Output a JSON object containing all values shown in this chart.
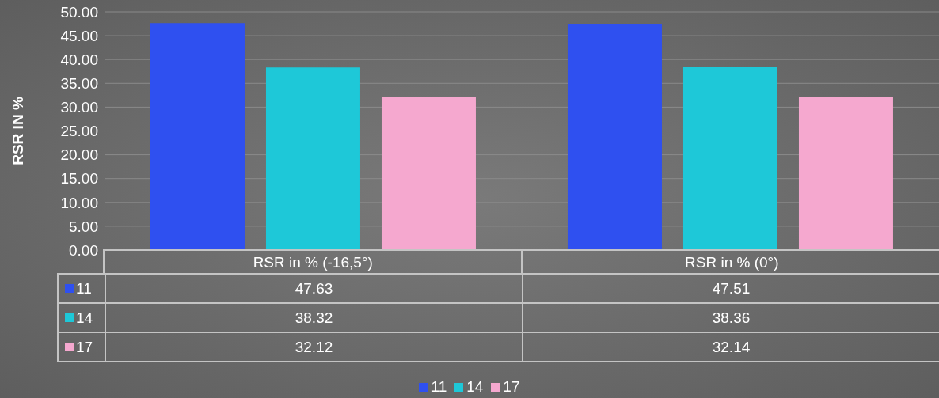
{
  "chart_data": {
    "type": "bar",
    "ylabel": "RSR IN %",
    "categories": [
      "RSR in % (-16,5°)",
      "RSR in % (0°)"
    ],
    "series": [
      {
        "name": "11",
        "color": "#2f50f0",
        "values": [
          47.63,
          47.51
        ]
      },
      {
        "name": "14",
        "color": "#1ec8d8",
        "values": [
          38.32,
          38.36
        ]
      },
      {
        "name": "17",
        "color": "#f5a8cf",
        "values": [
          32.12,
          32.14
        ]
      }
    ],
    "ylim": [
      0,
      50
    ],
    "yticks": [
      {
        "value": 0,
        "label": "0.00"
      },
      {
        "value": 5,
        "label": "5.00"
      },
      {
        "value": 10,
        "label": "10.00"
      },
      {
        "value": 15,
        "label": "15.00"
      },
      {
        "value": 20,
        "label": "20.00"
      },
      {
        "value": 25,
        "label": "25.00"
      },
      {
        "value": 30,
        "label": "30.00"
      },
      {
        "value": 35,
        "label": "35.00"
      },
      {
        "value": 40,
        "label": "40.00"
      },
      {
        "value": 45,
        "label": "45.00"
      },
      {
        "value": 50,
        "label": "50.00"
      }
    ],
    "grid": "y",
    "legend": "bottom",
    "data_labels": true
  }
}
